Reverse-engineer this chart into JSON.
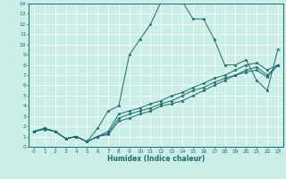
{
  "xlabel": "Humidex (Indice chaleur)",
  "xlim": [
    -0.5,
    23.5
  ],
  "ylim": [
    0,
    14
  ],
  "xticks": [
    0,
    1,
    2,
    3,
    4,
    5,
    6,
    7,
    8,
    9,
    10,
    11,
    12,
    13,
    14,
    15,
    16,
    17,
    18,
    19,
    20,
    21,
    22,
    23
  ],
  "yticks": [
    0,
    1,
    2,
    3,
    4,
    5,
    6,
    7,
    8,
    9,
    10,
    11,
    12,
    13,
    14
  ],
  "bg_color": "#cceee8",
  "line_color": "#1a6b6b",
  "grid_color": "#ffffff",
  "lines": [
    {
      "x": [
        0,
        1,
        2,
        3,
        4,
        5,
        6,
        7,
        8,
        9,
        10,
        11,
        12,
        13,
        14,
        15,
        16,
        17,
        18,
        19,
        20,
        21,
        22,
        23
      ],
      "y": [
        1.5,
        1.7,
        1.5,
        0.8,
        1.0,
        0.5,
        1.8,
        3.5,
        4.0,
        9.0,
        10.5,
        12.0,
        14.2,
        14.3,
        14.2,
        12.5,
        12.5,
        10.5,
        8.0,
        8.0,
        8.5,
        6.5,
        5.5,
        9.5
      ]
    },
    {
      "x": [
        0,
        1,
        2,
        3,
        4,
        5,
        6,
        7,
        8,
        9,
        10,
        11,
        12,
        13,
        14,
        15,
        16,
        17,
        18,
        19,
        20,
        21,
        22,
        23
      ],
      "y": [
        1.5,
        1.8,
        1.5,
        0.8,
        1.0,
        0.5,
        1.0,
        1.5,
        3.2,
        3.5,
        3.8,
        4.2,
        4.5,
        5.0,
        5.3,
        5.8,
        6.2,
        6.7,
        7.0,
        7.5,
        8.0,
        8.2,
        7.5,
        8.0
      ]
    },
    {
      "x": [
        0,
        1,
        2,
        3,
        4,
        5,
        6,
        7,
        8,
        9,
        10,
        11,
        12,
        13,
        14,
        15,
        16,
        17,
        18,
        19,
        20,
        21,
        22,
        23
      ],
      "y": [
        1.5,
        1.8,
        1.5,
        0.8,
        1.0,
        0.5,
        1.0,
        1.3,
        2.8,
        3.2,
        3.5,
        3.8,
        4.2,
        4.5,
        5.0,
        5.5,
        5.8,
        6.3,
        6.7,
        7.0,
        7.5,
        7.8,
        7.0,
        8.0
      ]
    },
    {
      "x": [
        0,
        1,
        2,
        3,
        4,
        5,
        6,
        7,
        8,
        9,
        10,
        11,
        12,
        13,
        14,
        15,
        16,
        17,
        18,
        19,
        20,
        21,
        22,
        23
      ],
      "y": [
        1.5,
        1.8,
        1.5,
        0.8,
        1.0,
        0.5,
        1.0,
        1.2,
        2.5,
        2.8,
        3.2,
        3.5,
        4.0,
        4.2,
        4.5,
        5.0,
        5.5,
        6.0,
        6.5,
        7.0,
        7.3,
        7.5,
        6.8,
        8.0
      ]
    }
  ]
}
